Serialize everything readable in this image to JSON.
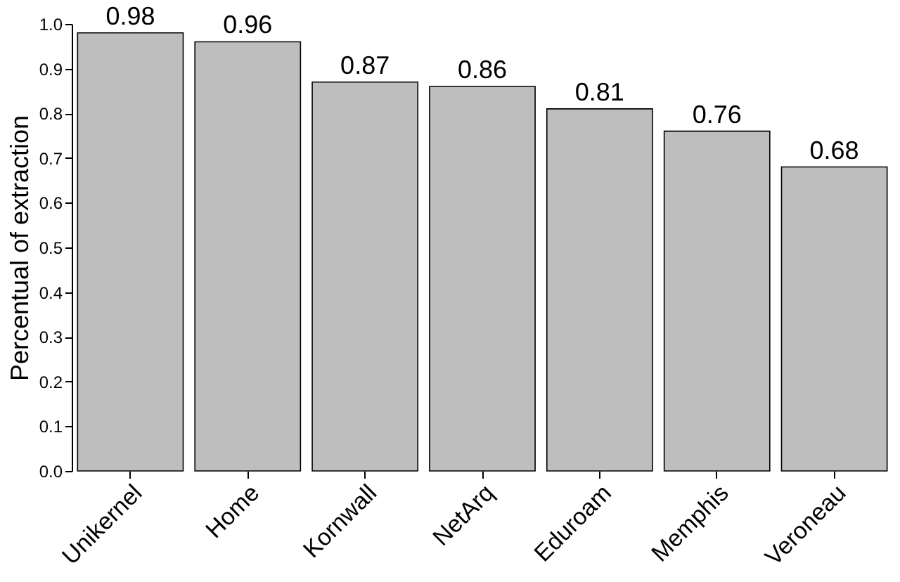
{
  "chart_data": {
    "type": "bar",
    "ylabel": "Percentual of extraction",
    "categories": [
      "Unikernel",
      "Home",
      "Kornwall",
      "NetArq",
      "Eduroam",
      "Memphis",
      "Veroneau"
    ],
    "values": [
      0.98,
      0.96,
      0.87,
      0.86,
      0.81,
      0.76,
      0.68
    ],
    "color": "#bebebe",
    "data_labels": true,
    "ylim": [
      0,
      1.0
    ],
    "yticks": [
      {
        "value": 0,
        "label": "0.0"
      },
      0.1,
      0.2,
      0.3,
      0.4,
      0.5,
      0.6,
      0.7,
      0.8,
      0.9,
      {
        "value": 1.0,
        "label": "1.0"
      }
    ],
    "grid": false
  }
}
